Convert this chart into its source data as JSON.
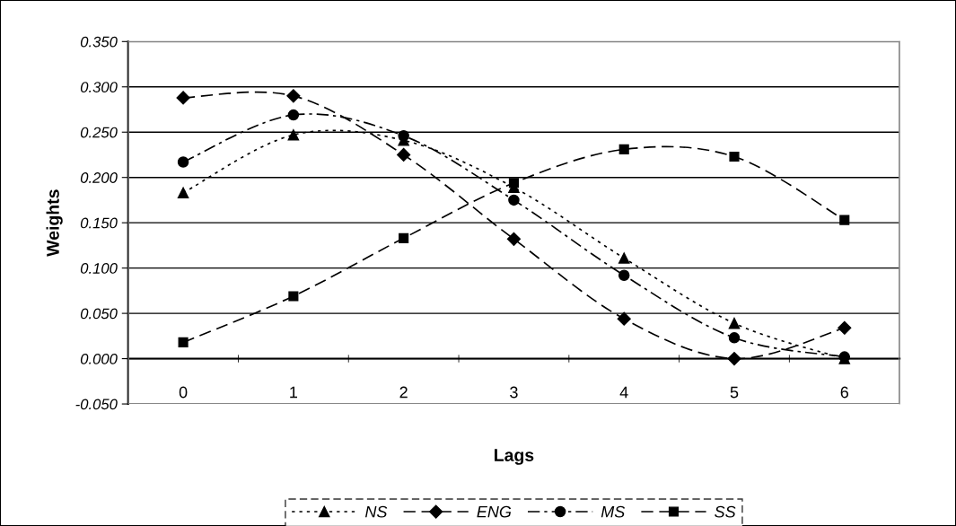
{
  "chart_data": {
    "type": "line",
    "xlabel": "Lags",
    "ylabel": "Weights",
    "categories": [
      "0",
      "1",
      "2",
      "3",
      "4",
      "5",
      "6"
    ],
    "ylim": [
      -0.05,
      0.35
    ],
    "yticks": [
      {
        "value": -0.05,
        "label": "-0.050"
      },
      {
        "value": 0,
        "label": "0.000"
      },
      {
        "value": 0.05,
        "label": "0.050"
      },
      {
        "value": 0.1,
        "label": "0.100"
      },
      {
        "value": 0.15,
        "label": "0.150"
      },
      {
        "value": 0.2,
        "label": "0.200"
      },
      {
        "value": 0.25,
        "label": "0.250"
      },
      {
        "value": 0.3,
        "label": "0.300"
      },
      {
        "value": 0.35,
        "label": "0.350"
      }
    ],
    "grid": "y",
    "legend": "bottom",
    "series": [
      {
        "name": "NS",
        "color": "#000000",
        "marker": "triangle",
        "line_style": "dotted",
        "values": [
          0.183,
          0.247,
          0.241,
          0.189,
          0.111,
          0.039,
          0.0
        ]
      },
      {
        "name": "ENG",
        "color": "#000000",
        "marker": "diamond",
        "line_style": "dashed",
        "values": [
          0.288,
          0.29,
          0.225,
          0.132,
          0.044,
          0.0,
          0.034
        ]
      },
      {
        "name": "MS",
        "color": "#000000",
        "marker": "circle",
        "line_style": "dashdot",
        "values": [
          0.217,
          0.269,
          0.246,
          0.175,
          0.092,
          0.023,
          0.002
        ]
      },
      {
        "name": "SS",
        "color": "#000000",
        "marker": "square",
        "line_style": "dashed",
        "values": [
          0.018,
          0.069,
          0.133,
          0.194,
          0.231,
          0.223,
          0.153
        ]
      }
    ]
  }
}
